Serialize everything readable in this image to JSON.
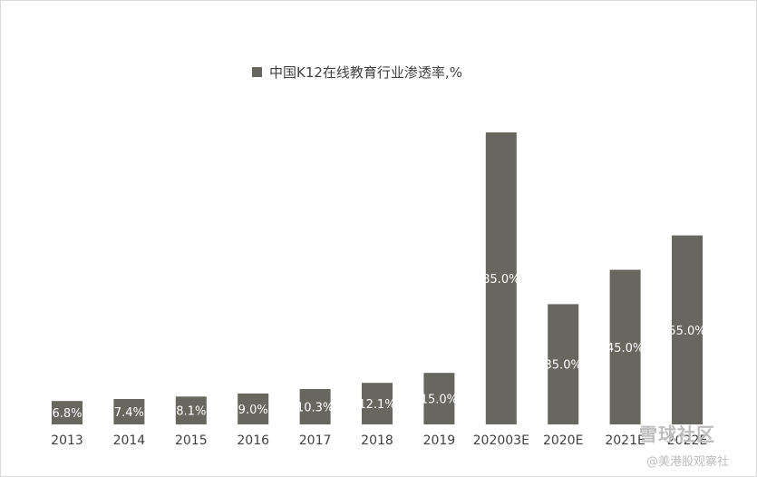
{
  "chart_data": {
    "type": "bar",
    "legend": "中国K12在线教育行业渗透率,%",
    "categories": [
      "2013",
      "2014",
      "2015",
      "2016",
      "2017",
      "2018",
      "2019",
      "202003E",
      "2020E",
      "2021E",
      "2022E"
    ],
    "values": [
      6.8,
      7.4,
      8.1,
      9.0,
      10.3,
      12.1,
      15.0,
      85.0,
      35.0,
      45.0,
      55.0
    ],
    "labels": [
      "6.8%",
      "7.4%",
      "8.1%",
      "9.0%",
      "10.3%",
      "12.1%",
      "15.0%",
      "85.0%",
      "35.0%",
      "45.0%",
      "55.0%"
    ],
    "bar_color": "#67665f",
    "ylim": [
      0,
      85
    ],
    "grid": false,
    "legend_position": "top"
  },
  "watermark": {
    "brand": "雪球社区",
    "handle": "@美港股观察社"
  }
}
